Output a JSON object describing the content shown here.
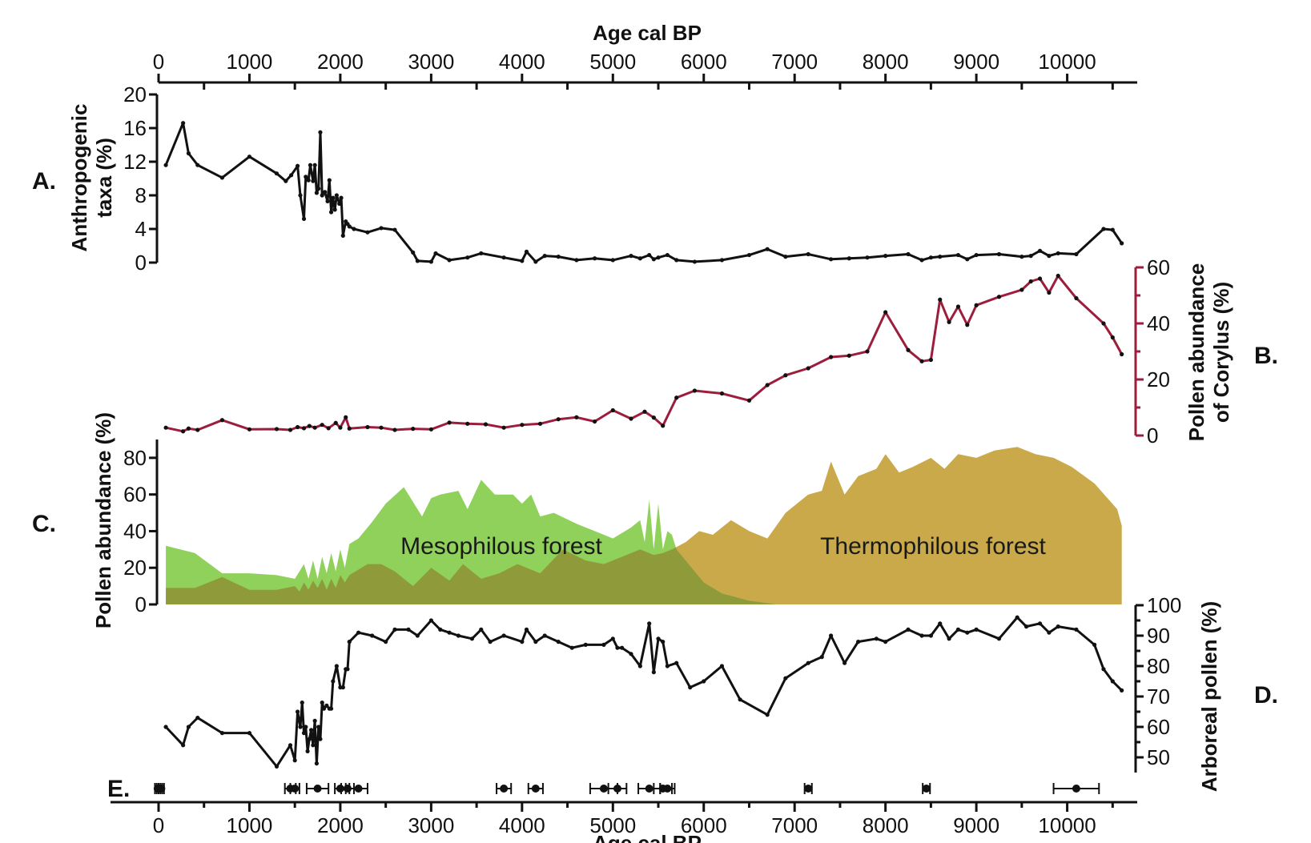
{
  "colors": {
    "black": "#111111",
    "corylus": "#9c1d3c",
    "mesophilous": "#8fd15a",
    "thermophilous": "#c9a949",
    "overlap": "#8f9a3a"
  },
  "chart_data": [
    {
      "id": "A",
      "type": "line",
      "panel_label": "A.",
      "ylabel_lines": [
        "Anthropogenic",
        "taxa (%)"
      ],
      "xlabel": "Age cal BP",
      "xlim": [
        0,
        10700
      ],
      "ylim": [
        0,
        20
      ],
      "x_ticks": [
        0,
        1000,
        2000,
        3000,
        4000,
        5000,
        6000,
        7000,
        8000,
        9000,
        10000
      ],
      "y_ticks": [
        0,
        4,
        8,
        12,
        16,
        20
      ],
      "x": [
        80,
        270,
        330,
        430,
        700,
        1000,
        1300,
        1400,
        1460,
        1530,
        1560,
        1600,
        1620,
        1650,
        1670,
        1700,
        1720,
        1740,
        1760,
        1780,
        1800,
        1830,
        1860,
        1880,
        1900,
        1920,
        1940,
        1960,
        1990,
        2010,
        2030,
        2060,
        2080,
        2100,
        2150,
        2300,
        2450,
        2600,
        2800,
        2850,
        3000,
        3050,
        3200,
        3400,
        3550,
        3800,
        4000,
        4050,
        4150,
        4250,
        4400,
        4600,
        4800,
        5000,
        5200,
        5300,
        5400,
        5450,
        5500,
        5600,
        5700,
        5900,
        6200,
        6500,
        6700,
        6900,
        7150,
        7400,
        7600,
        7800,
        8000,
        8250,
        8400,
        8500,
        8600,
        8800,
        8900,
        9000,
        9250,
        9500,
        9600,
        9700,
        9800,
        9900,
        10100,
        10400,
        10500,
        10600
      ],
      "y": [
        11.6,
        16.6,
        13.0,
        11.6,
        10.1,
        12.6,
        10.6,
        9.7,
        10.4,
        11.5,
        8.0,
        5.2,
        10.2,
        9.8,
        11.6,
        9.7,
        11.6,
        8.3,
        8.8,
        15.5,
        8.0,
        8.4,
        7.3,
        9.8,
        6.0,
        7.7,
        6.3,
        8.0,
        7.0,
        7.7,
        3.2,
        4.9,
        4.6,
        4.3,
        4.0,
        3.6,
        4.1,
        3.9,
        1.2,
        0.2,
        0.1,
        1.1,
        0.3,
        0.6,
        1.1,
        0.6,
        0.2,
        1.3,
        0.1,
        0.8,
        0.7,
        0.3,
        0.5,
        0.3,
        0.8,
        0.5,
        0.9,
        0.4,
        0.6,
        0.9,
        0.3,
        0.1,
        0.3,
        0.9,
        1.6,
        0.7,
        1.0,
        0.4,
        0.5,
        0.6,
        0.8,
        1.0,
        0.3,
        0.6,
        0.7,
        0.9,
        0.4,
        0.9,
        1.0,
        0.7,
        0.8,
        1.4,
        0.8,
        1.1,
        1.0,
        4.0,
        3.9,
        2.3
      ]
    },
    {
      "id": "B",
      "type": "line",
      "panel_label": "B.",
      "ylabel_lines": [
        "Pollen abundance",
        "of Corylus (%)"
      ],
      "xlim": [
        0,
        10700
      ],
      "ylim": [
        0,
        60
      ],
      "y_ticks": [
        0,
        20,
        40,
        60
      ],
      "x": [
        80,
        270,
        330,
        430,
        700,
        1000,
        1300,
        1450,
        1530,
        1600,
        1660,
        1720,
        1800,
        1870,
        1950,
        2000,
        2060,
        2100,
        2300,
        2450,
        2600,
        2800,
        3000,
        3200,
        3400,
        3600,
        3800,
        4000,
        4200,
        4400,
        4600,
        4800,
        5000,
        5200,
        5350,
        5450,
        5550,
        5700,
        5900,
        6200,
        6500,
        6700,
        6900,
        7150,
        7400,
        7600,
        7800,
        8000,
        8250,
        8400,
        8500,
        8600,
        8700,
        8800,
        8900,
        9000,
        9250,
        9500,
        9600,
        9700,
        9800,
        9900,
        10100,
        10400,
        10500,
        10600
      ],
      "y": [
        2.8,
        1.5,
        2.5,
        2.0,
        5.5,
        2.2,
        2.3,
        2.0,
        3.0,
        2.6,
        3.4,
        2.8,
        3.8,
        2.6,
        4.5,
        2.8,
        6.5,
        2.5,
        3.0,
        2.8,
        2.0,
        2.4,
        2.2,
        4.6,
        4.2,
        4.0,
        2.8,
        3.8,
        4.2,
        5.8,
        6.5,
        5.0,
        9.0,
        6.0,
        8.5,
        6.4,
        3.5,
        13.5,
        16.0,
        15.0,
        12.5,
        18.0,
        21.5,
        24.0,
        28.0,
        28.5,
        30.0,
        44.0,
        30.5,
        26.5,
        27.0,
        48.5,
        40.5,
        46.0,
        39.5,
        46.5,
        49.5,
        52.0,
        55.0,
        56.0,
        51.0,
        57.0,
        49.0,
        40.0,
        35.0,
        29.0
      ]
    },
    {
      "id": "C",
      "type": "area",
      "panel_label": "C.",
      "ylabel": "Pollen abundance (%)",
      "xlim": [
        0,
        10700
      ],
      "ylim": [
        0,
        90
      ],
      "y_ticks": [
        0,
        20,
        40,
        60,
        80
      ],
      "series": [
        {
          "name": "Mesophilous forest",
          "x": [
            80,
            400,
            700,
            1000,
            1300,
            1500,
            1550,
            1600,
            1650,
            1700,
            1750,
            1800,
            1850,
            1900,
            1950,
            2000,
            2050,
            2100,
            2200,
            2350,
            2500,
            2700,
            2900,
            3000,
            3100,
            3300,
            3400,
            3550,
            3700,
            3900,
            4000,
            4100,
            4200,
            4350,
            4600,
            5000,
            5200,
            5300,
            5350,
            5400,
            5450,
            5500,
            5550,
            5600,
            5650,
            5700,
            5800,
            6000,
            6200,
            6500,
            6800
          ],
          "y": [
            32,
            28,
            17,
            17,
            16,
            14,
            18,
            22,
            14,
            24,
            14,
            26,
            17,
            28,
            18,
            30,
            20,
            33,
            36,
            45,
            55,
            64,
            48,
            58,
            60,
            62,
            52,
            68,
            60,
            60,
            55,
            60,
            48,
            50,
            44,
            36,
            42,
            46,
            34,
            57,
            30,
            55,
            30,
            40,
            38,
            30,
            24,
            12,
            6,
            2,
            0
          ]
        },
        {
          "name": "Thermophilous forest",
          "x": [
            80,
            400,
            700,
            1000,
            1300,
            1500,
            1550,
            1600,
            1650,
            1700,
            1750,
            1800,
            1850,
            1900,
            1950,
            2000,
            2050,
            2100,
            2300,
            2450,
            2600,
            2800,
            3000,
            3200,
            3350,
            3550,
            3750,
            3950,
            4200,
            4450,
            4700,
            4900,
            5100,
            5300,
            5450,
            5550,
            5650,
            5800,
            5950,
            6100,
            6300,
            6500,
            6700,
            6900,
            7150,
            7300,
            7400,
            7550,
            7700,
            7900,
            8000,
            8150,
            8300,
            8500,
            8650,
            8800,
            9000,
            9200,
            9450,
            9650,
            9850,
            10050,
            10300,
            10550,
            10600
          ],
          "y": [
            9,
            9,
            15,
            8,
            8,
            10,
            7,
            12,
            8,
            13,
            9,
            14,
            8,
            14,
            9,
            16,
            12,
            16,
            22,
            22,
            18,
            10,
            20,
            13,
            22,
            14,
            17,
            22,
            17,
            30,
            24,
            22,
            26,
            30,
            27,
            28,
            30,
            34,
            40,
            38,
            46,
            40,
            36,
            50,
            60,
            62,
            78,
            60,
            70,
            74,
            82,
            72,
            75,
            80,
            74,
            82,
            80,
            84,
            86,
            82,
            80,
            75,
            66,
            52,
            43
          ]
        }
      ],
      "area_labels": [
        "Mesophilous forest",
        "Thermophilous forest"
      ]
    },
    {
      "id": "D",
      "type": "line",
      "panel_label": "D.",
      "ylabel": "Arboreal pollen (%)",
      "xlim": [
        0,
        10700
      ],
      "ylim": [
        45,
        100
      ],
      "y_ticks": [
        50,
        60,
        70,
        80,
        90,
        100
      ],
      "x": [
        80,
        270,
        330,
        430,
        700,
        1000,
        1300,
        1450,
        1500,
        1530,
        1560,
        1580,
        1600,
        1620,
        1640,
        1660,
        1680,
        1700,
        1720,
        1740,
        1760,
        1780,
        1800,
        1820,
        1850,
        1880,
        1900,
        1920,
        1960,
        2000,
        2030,
        2060,
        2080,
        2100,
        2200,
        2350,
        2500,
        2600,
        2750,
        2850,
        3000,
        3100,
        3200,
        3300,
        3450,
        3550,
        3650,
        3800,
        4000,
        4050,
        4150,
        4250,
        4400,
        4550,
        4700,
        4900,
        5000,
        5050,
        5100,
        5200,
        5300,
        5400,
        5450,
        5500,
        5550,
        5600,
        5700,
        5850,
        6000,
        6200,
        6400,
        6700,
        6900,
        7150,
        7300,
        7400,
        7550,
        7700,
        7900,
        8000,
        8250,
        8400,
        8500,
        8600,
        8700,
        8800,
        8900,
        9000,
        9250,
        9450,
        9550,
        9700,
        9800,
        9900,
        10100,
        10300,
        10400,
        10500,
        10600
      ],
      "y": [
        60,
        54,
        60,
        63,
        58,
        58,
        47,
        54,
        49,
        65,
        60,
        68,
        58,
        60,
        52,
        56,
        59,
        54,
        62,
        48,
        60,
        56,
        68,
        66,
        67,
        66,
        66,
        75,
        80,
        73,
        73,
        79,
        79,
        88,
        91,
        90,
        88,
        92,
        92,
        90,
        95,
        92,
        91,
        90,
        89,
        92,
        88,
        90,
        88,
        92,
        88,
        90,
        88,
        86,
        87,
        87,
        89,
        86,
        86,
        84,
        80,
        94,
        78,
        89,
        88,
        80,
        81,
        73,
        75,
        80,
        69,
        64,
        76,
        81,
        83,
        90,
        81,
        88,
        89,
        88,
        92,
        90,
        90,
        94,
        89,
        92,
        91,
        92,
        89,
        96,
        93,
        94,
        91,
        93,
        92,
        87,
        79,
        75,
        72
      ]
    },
    {
      "id": "E",
      "type": "scatter",
      "panel_label": "E.",
      "xlabel": "Age cal BP",
      "xlim": [
        0,
        10700
      ],
      "x": [
        -10,
        10,
        30,
        1450,
        1500,
        1750,
        2000,
        2080,
        2200,
        3800,
        4150,
        4900,
        5050,
        5400,
        5550,
        5600,
        7150,
        8450,
        10100
      ],
      "x_err": [
        30,
        30,
        30,
        60,
        50,
        120,
        60,
        70,
        100,
        80,
        80,
        150,
        100,
        120,
        100,
        80,
        40,
        40,
        250
      ]
    }
  ]
}
